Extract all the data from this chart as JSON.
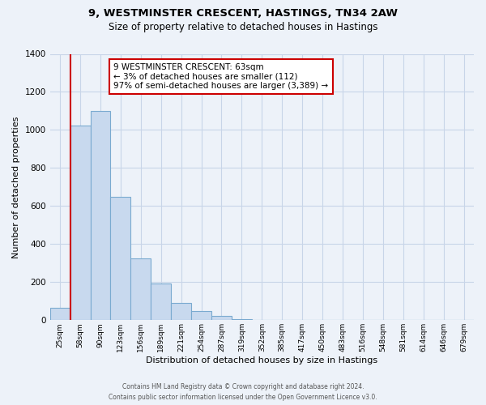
{
  "title": "9, WESTMINSTER CRESCENT, HASTINGS, TN34 2AW",
  "subtitle": "Size of property relative to detached houses in Hastings",
  "xlabel": "Distribution of detached houses by size in Hastings",
  "ylabel": "Number of detached properties",
  "bar_labels": [
    "25sqm",
    "58sqm",
    "90sqm",
    "123sqm",
    "156sqm",
    "189sqm",
    "221sqm",
    "254sqm",
    "287sqm",
    "319sqm",
    "352sqm",
    "385sqm",
    "417sqm",
    "450sqm",
    "483sqm",
    "516sqm",
    "548sqm",
    "581sqm",
    "614sqm",
    "646sqm",
    "679sqm"
  ],
  "bar_values": [
    65,
    1025,
    1100,
    650,
    325,
    192,
    90,
    47,
    22,
    5,
    3,
    2,
    0,
    0,
    0,
    0,
    0,
    0,
    0,
    0,
    0
  ],
  "bar_color": "#c8d9ee",
  "bar_edge_color": "#7aaad0",
  "ylim": [
    0,
    1400
  ],
  "yticks": [
    0,
    200,
    400,
    600,
    800,
    1000,
    1200,
    1400
  ],
  "property_line_color": "#cc0000",
  "annotation_box_text": "9 WESTMINSTER CRESCENT: 63sqm\n← 3% of detached houses are smaller (112)\n97% of semi-detached houses are larger (3,389) →",
  "annotation_box_facecolor": "#ffffff",
  "annotation_box_edgecolor": "#cc0000",
  "footer_line1": "Contains HM Land Registry data © Crown copyright and database right 2024.",
  "footer_line2": "Contains public sector information licensed under the Open Government Licence v3.0.",
  "grid_color": "#c8d5e8",
  "background_color": "#edf2f9"
}
